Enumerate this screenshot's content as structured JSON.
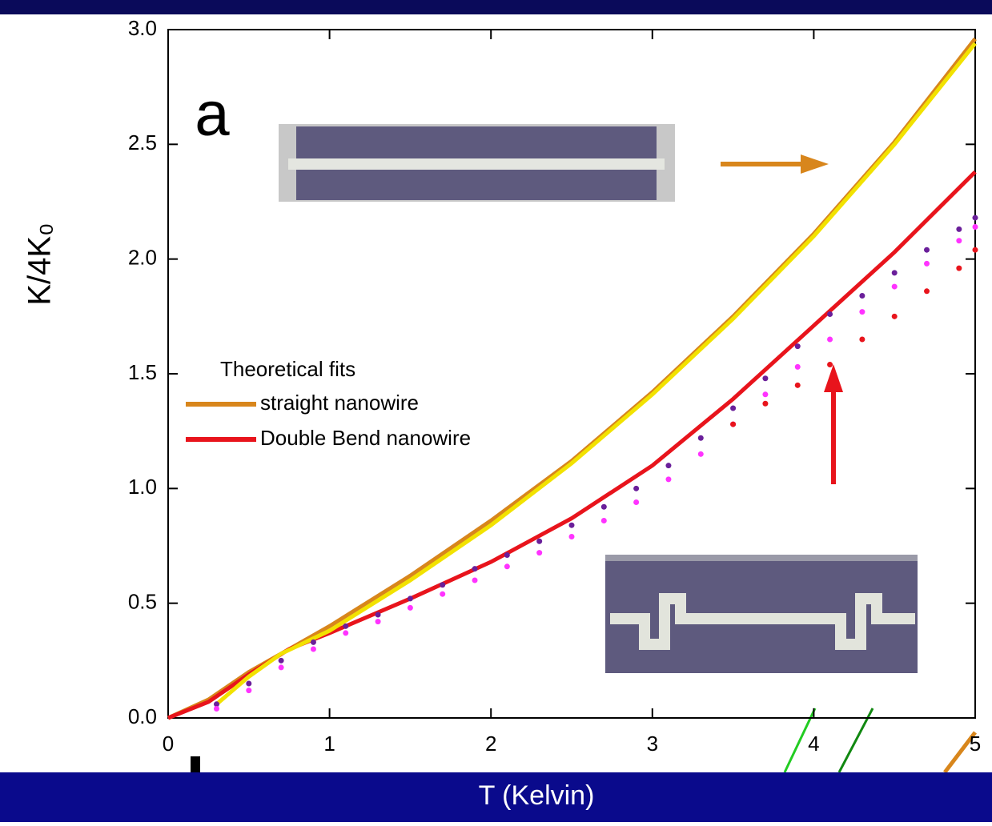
{
  "chart_data": {
    "type": "line",
    "panel_label": "a",
    "xlabel": "T (Kelvin)",
    "ylabel": "K/4K₀",
    "legend_title": "Theoretical fits",
    "xlim": [
      0,
      5
    ],
    "ylim": [
      0,
      3
    ],
    "xticks": [
      0,
      1,
      2,
      3,
      4,
      5
    ],
    "yticks": [
      {
        "value": 0,
        "label": "0.0"
      },
      0.5,
      {
        "value": 1,
        "label": "1.0"
      },
      1.5,
      {
        "value": 2,
        "label": "2.0"
      },
      2.5,
      {
        "value": 3,
        "label": "3.0"
      }
    ],
    "series": [
      {
        "name": "straight nanowire",
        "color": "#d8861c",
        "style": "line",
        "x": [
          0,
          0.25,
          0.5,
          0.75,
          1,
          1.5,
          2,
          2.5,
          3,
          3.5,
          4,
          4.5,
          5
        ],
        "values": [
          0,
          0.08,
          0.2,
          0.3,
          0.4,
          0.62,
          0.86,
          1.12,
          1.42,
          1.75,
          2.11,
          2.51,
          2.96
        ]
      },
      {
        "name": "Double Bend nanowire",
        "color": "#e8141c",
        "style": "line",
        "x": [
          0,
          0.25,
          0.5,
          0.75,
          1,
          1.5,
          2,
          2.5,
          3,
          3.5,
          4,
          4.5,
          5
        ],
        "values": [
          0,
          0.07,
          0.19,
          0.3,
          0.37,
          0.52,
          0.68,
          0.87,
          1.1,
          1.39,
          1.71,
          2.03,
          2.38
        ]
      },
      {
        "color": "#f2e200",
        "style": "line",
        "x": [
          0.3,
          0.5,
          0.7,
          1,
          1.5,
          2,
          2.5,
          3,
          3.5,
          4,
          4.5,
          5
        ],
        "values": [
          0.06,
          0.18,
          0.28,
          0.38,
          0.6,
          0.84,
          1.11,
          1.41,
          1.74,
          2.1,
          2.5,
          2.94
        ]
      },
      {
        "color": "#6a1f9a",
        "style": "scatter",
        "x": [
          0.3,
          0.5,
          0.7,
          0.9,
          1.1,
          1.3,
          1.5,
          1.7,
          1.9,
          2.1,
          2.3,
          2.5,
          2.7,
          2.9,
          3.1,
          3.3,
          3.5,
          3.7,
          3.9,
          4.1,
          4.3,
          4.5,
          4.7,
          4.9,
          5.0
        ],
        "values": [
          0.06,
          0.15,
          0.25,
          0.33,
          0.4,
          0.45,
          0.52,
          0.58,
          0.65,
          0.71,
          0.77,
          0.84,
          0.92,
          1.0,
          1.1,
          1.22,
          1.35,
          1.48,
          1.62,
          1.76,
          1.84,
          1.94,
          2.04,
          2.13,
          2.18
        ]
      },
      {
        "color": "#ff33ff",
        "style": "scatter",
        "x": [
          0.3,
          0.5,
          0.7,
          0.9,
          1.1,
          1.3,
          1.5,
          1.7,
          1.9,
          2.1,
          2.3,
          2.5,
          2.7,
          2.9,
          3.1,
          3.3,
          3.5,
          3.7,
          3.9,
          4.1,
          4.3,
          4.5,
          4.7,
          4.9,
          5.0
        ],
        "values": [
          0.04,
          0.12,
          0.22,
          0.3,
          0.37,
          0.42,
          0.48,
          0.54,
          0.6,
          0.66,
          0.72,
          0.79,
          0.86,
          0.94,
          1.04,
          1.15,
          1.28,
          1.41,
          1.53,
          1.65,
          1.77,
          1.88,
          1.98,
          2.08,
          2.14
        ]
      },
      {
        "color": "#e8141c",
        "style": "scatter",
        "x": [
          3.5,
          3.7,
          3.9,
          4.1,
          4.3,
          4.5,
          4.7,
          4.9,
          5.0
        ],
        "values": [
          1.28,
          1.37,
          1.45,
          1.54,
          1.65,
          1.75,
          1.86,
          1.96,
          2.04
        ]
      }
    ]
  }
}
